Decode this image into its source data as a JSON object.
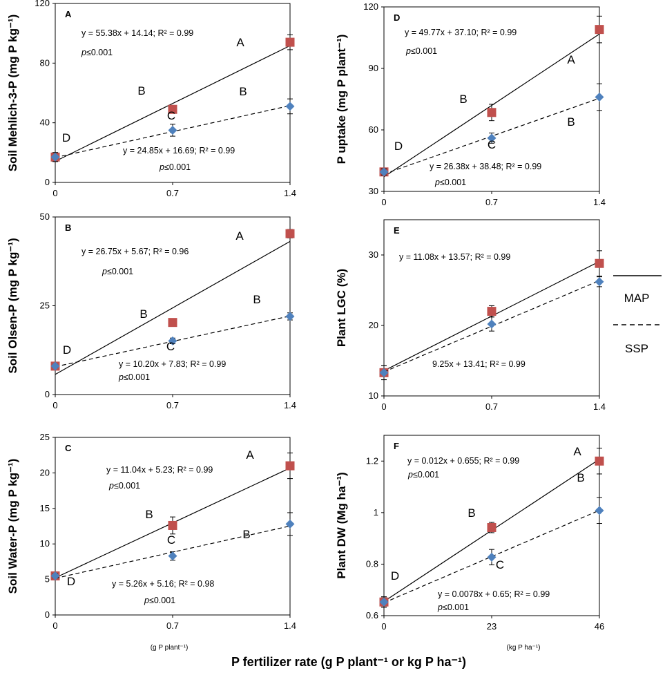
{
  "x_axis_title": "P fertilizer rate (g P plant⁻¹ or kg P ha⁻¹)",
  "unit_labels": {
    "left": "(g P plant⁻¹)",
    "right": "(kg P ha⁻¹)"
  },
  "legend": {
    "solid_label": "MAP",
    "dashed_label": "SSP"
  },
  "colors": {
    "map": "#c0504d",
    "ssp": "#4f81bd"
  },
  "chart_data": [
    {
      "id": "A",
      "type": "scatter",
      "ylabel": "Soil Mehlich-3-P (mg P kg⁻¹)",
      "x": [
        0,
        0.7,
        1.4
      ],
      "xticks": [
        "0",
        "0.7",
        "1.4"
      ],
      "xlim": [
        0,
        1.4
      ],
      "ylim": [
        0,
        120
      ],
      "yticks": [
        0,
        40,
        80,
        120
      ],
      "series": [
        {
          "name": "MAP",
          "values": [
            17,
            49,
            94
          ],
          "errors": [
            3,
            2,
            5
          ],
          "fit": {
            "slope": 55.38,
            "intercept": 14.14
          },
          "equation": "y = 55.38x + 14.14; R² = 0.99",
          "p": "p≤0.001",
          "letters": [
            "D",
            "B",
            "A"
          ]
        },
        {
          "name": "SSP",
          "values": [
            17,
            35,
            51
          ],
          "errors": [
            3,
            4,
            5
          ],
          "fit": {
            "slope": 24.85,
            "intercept": 16.69
          },
          "equation": "y = 24.85x + 16.69; R² = 0.99",
          "p": "p≤0.001",
          "letters": [
            "",
            "C",
            "B"
          ]
        }
      ]
    },
    {
      "id": "B",
      "type": "scatter",
      "ylabel": "Soil Olsen-P (mg P kg⁻¹)",
      "x": [
        0,
        0.7,
        1.4
      ],
      "xticks": [
        "0",
        "0.7",
        "1.4"
      ],
      "xlim": [
        0,
        1.4
      ],
      "ylim": [
        0,
        50
      ],
      "yticks": [
        0,
        25,
        50
      ],
      "series": [
        {
          "name": "MAP",
          "values": [
            8,
            20.3,
            45.3
          ],
          "errors": [
            0.5,
            0.5,
            1.2
          ],
          "fit": {
            "slope": 26.75,
            "intercept": 5.67
          },
          "equation": "y = 26.75x + 5.67; R² = 0.96",
          "p": "p≤0.001",
          "letters": [
            "D",
            "B",
            "A"
          ]
        },
        {
          "name": "SSP",
          "values": [
            8,
            15.1,
            22
          ],
          "errors": [
            0.5,
            0.8,
            1
          ],
          "fit": {
            "slope": 10.2,
            "intercept": 7.83
          },
          "equation": "y = 10.20x + 7.83; R² = 0.99",
          "p": "p≤0.001",
          "letters": [
            "",
            "C",
            "B"
          ]
        }
      ]
    },
    {
      "id": "C",
      "type": "scatter",
      "ylabel": "Soil Water-P (mg P kg⁻¹)",
      "x": [
        0,
        0.7,
        1.4
      ],
      "xticks": [
        "0",
        "0.7",
        "1.4"
      ],
      "xlim": [
        0,
        1.4
      ],
      "ylim": [
        0,
        25
      ],
      "yticks": [
        0,
        5,
        10,
        15,
        20,
        25
      ],
      "series": [
        {
          "name": "MAP",
          "values": [
            5.5,
            12.6,
            21
          ],
          "errors": [
            0.3,
            1.2,
            1.8
          ],
          "fit": {
            "slope": 11.04,
            "intercept": 5.23
          },
          "equation": "y = 11.04x + 5.23; R² = 0.99",
          "p": "p≤0.001",
          "letters": [
            "D",
            "B",
            "A"
          ]
        },
        {
          "name": "SSP",
          "values": [
            5.5,
            8.3,
            12.8
          ],
          "errors": [
            0.3,
            0.6,
            1.6
          ],
          "fit": {
            "slope": 5.26,
            "intercept": 5.16
          },
          "equation": "y = 5.26x + 5.16; R² = 0.98",
          "p": "p≤0.001",
          "letters": [
            "",
            "C",
            "B"
          ]
        }
      ]
    },
    {
      "id": "D",
      "type": "scatter",
      "ylabel": "P uptake (mg P plant⁻¹)",
      "x": [
        0,
        0.7,
        1.4
      ],
      "xticks": [
        "0",
        "0.7",
        "1.4"
      ],
      "xlim": [
        0,
        1.4
      ],
      "ylim": [
        30,
        120
      ],
      "yticks": [
        30,
        60,
        90,
        120
      ],
      "series": [
        {
          "name": "MAP",
          "values": [
            39.5,
            68.5,
            109
          ],
          "errors": [
            1.5,
            4,
            6.5
          ],
          "fit": {
            "slope": 49.77,
            "intercept": 37.1
          },
          "equation": "y = 49.77x + 37.10; R² = 0.99",
          "p": "p≤0.001",
          "letters": [
            "D",
            "B",
            "A"
          ]
        },
        {
          "name": "SSP",
          "values": [
            39.5,
            56,
            76
          ],
          "errors": [
            1.5,
            2.5,
            6.5
          ],
          "fit": {
            "slope": 26.38,
            "intercept": 38.48
          },
          "equation": "y = 26.38x + 38.48; R² = 0.99",
          "p": "p≤0.001",
          "letters": [
            "",
            "C",
            "B"
          ]
        }
      ]
    },
    {
      "id": "E",
      "type": "scatter",
      "ylabel": "Plant LGC (%)",
      "x": [
        0,
        0.7,
        1.4
      ],
      "xticks": [
        "0",
        "0.7",
        "1.4"
      ],
      "xlim": [
        0,
        1.4
      ],
      "ylim": [
        10,
        35
      ],
      "yticks": [
        10,
        20,
        30
      ],
      "series": [
        {
          "name": "MAP",
          "values": [
            13.3,
            22,
            28.8
          ],
          "errors": [
            1,
            0.8,
            1.8
          ],
          "fit": {
            "slope": 11.08,
            "intercept": 13.57
          },
          "equation": "y = 11.08x + 13.57; R² = 0.99",
          "p": "",
          "letters": [
            "",
            "",
            ""
          ]
        },
        {
          "name": "SSP",
          "values": [
            13.3,
            20.2,
            26.2
          ],
          "errors": [
            1,
            1,
            0.7
          ],
          "fit": {
            "slope": 9.25,
            "intercept": 13.41
          },
          "equation": "9.25x + 13.41; R² = 0.99",
          "p": "",
          "letters": [
            "",
            "",
            ""
          ]
        }
      ]
    },
    {
      "id": "F",
      "type": "scatter",
      "ylabel": "Plant DW (Mg ha⁻¹)",
      "x": [
        0,
        23,
        46
      ],
      "xticks": [
        "0",
        "23",
        "46"
      ],
      "xlim": [
        0,
        46
      ],
      "ylim": [
        0.6,
        1.3
      ],
      "yticks": [
        0.6,
        0.8,
        1.0,
        1.2
      ],
      "ytick_labels": [
        "0.6",
        "0.8",
        "1",
        "1.2"
      ],
      "series": [
        {
          "name": "MAP",
          "values": [
            0.653,
            0.942,
            1.2
          ],
          "errors": [
            0.02,
            0.02,
            0.05
          ],
          "fit": {
            "slope": 0.012,
            "intercept": 0.655
          },
          "equation": "y = 0.012x + 0.655; R² = 0.99",
          "p": "p≤0.001",
          "letters": [
            "D",
            "B",
            "A"
          ]
        },
        {
          "name": "SSP",
          "values": [
            0.653,
            0.827,
            1.008
          ],
          "errors": [
            0.02,
            0.03,
            0.05
          ],
          "fit": {
            "slope": 0.0078,
            "intercept": 0.65
          },
          "equation": "y = 0.0078x + 0.65; R² = 0.99",
          "p": "p≤0.001",
          "letters": [
            "",
            "C",
            "B"
          ]
        }
      ]
    }
  ]
}
